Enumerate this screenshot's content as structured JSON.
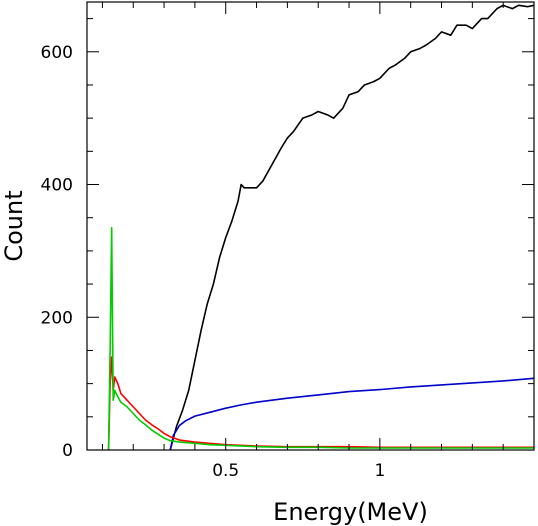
{
  "chart_data": {
    "type": "line",
    "xlabel": "Energy(MeV)",
    "ylabel": "Count",
    "xlim": [
      0.05,
      1.5
    ],
    "ylim": [
      0,
      675
    ],
    "x_ticks": [
      {
        "value": 0.5,
        "label": "0.5"
      },
      {
        "value": 1.0,
        "label": "1"
      }
    ],
    "y_ticks": [
      {
        "value": 0,
        "label": "0"
      },
      {
        "value": 200,
        "label": "200"
      },
      {
        "value": 400,
        "label": "400"
      },
      {
        "value": 600,
        "label": "600"
      }
    ],
    "x_minor_ticks": [
      0.1,
      0.2,
      0.3,
      0.4,
      0.6,
      0.7,
      0.8,
      0.9,
      1.1,
      1.2,
      1.3,
      1.4,
      1.5
    ],
    "y_minor_ticks": [
      50,
      100,
      150,
      250,
      300,
      350,
      450,
      500,
      550,
      650
    ],
    "grid": false,
    "series": [
      {
        "color": "#000000",
        "x": [
          0.32,
          0.34,
          0.36,
          0.38,
          0.4,
          0.42,
          0.44,
          0.46,
          0.48,
          0.5,
          0.52,
          0.54,
          0.55,
          0.56,
          0.58,
          0.6,
          0.62,
          0.65,
          0.68,
          0.7,
          0.72,
          0.75,
          0.78,
          0.8,
          0.83,
          0.85,
          0.88,
          0.9,
          0.93,
          0.95,
          0.98,
          1.0,
          1.03,
          1.05,
          1.08,
          1.1,
          1.13,
          1.15,
          1.18,
          1.2,
          1.23,
          1.25,
          1.28,
          1.3,
          1.33,
          1.35,
          1.38,
          1.4,
          1.43,
          1.45,
          1.48,
          1.5
        ],
        "y": [
          0,
          35,
          60,
          90,
          135,
          180,
          220,
          250,
          290,
          320,
          345,
          375,
          400,
          395,
          395,
          395,
          405,
          430,
          455,
          470,
          480,
          500,
          505,
          510,
          505,
          500,
          515,
          535,
          540,
          550,
          555,
          560,
          575,
          580,
          590,
          600,
          605,
          610,
          620,
          630,
          625,
          640,
          640,
          635,
          650,
          650,
          665,
          670,
          665,
          670,
          668,
          670
        ]
      },
      {
        "color": "#0000cc",
        "x": [
          0.32,
          0.33,
          0.35,
          0.37,
          0.4,
          0.45,
          0.5,
          0.55,
          0.6,
          0.7,
          0.8,
          0.9,
          1.0,
          1.1,
          1.2,
          1.3,
          1.4,
          1.5
        ],
        "y": [
          0,
          22,
          37,
          44,
          51,
          57,
          63,
          68,
          72,
          78,
          83,
          88,
          91,
          95,
          98,
          101,
          104,
          108
        ]
      },
      {
        "color": "#ff0000",
        "x": [
          0.12,
          0.125,
          0.13,
          0.135,
          0.14,
          0.15,
          0.16,
          0.18,
          0.2,
          0.22,
          0.24,
          0.26,
          0.28,
          0.3,
          0.32,
          0.35,
          0.4,
          0.45,
          0.5,
          0.6,
          0.7,
          0.8,
          0.9,
          1.0,
          1.1,
          1.2,
          1.3,
          1.4,
          1.5
        ],
        "y": [
          0,
          100,
          140,
          90,
          110,
          100,
          85,
          75,
          65,
          55,
          45,
          38,
          32,
          25,
          20,
          15,
          12,
          10,
          8,
          6,
          5,
          5,
          5,
          4,
          4,
          4,
          4,
          4,
          4
        ]
      },
      {
        "color": "#00cc00",
        "x": [
          0.12,
          0.125,
          0.13,
          0.135,
          0.14,
          0.15,
          0.16,
          0.18,
          0.2,
          0.22,
          0.24,
          0.26,
          0.28,
          0.3,
          0.32,
          0.35,
          0.4,
          0.45,
          0.5,
          0.6,
          0.7,
          0.8,
          0.9,
          1.0,
          1.1,
          1.2,
          1.3,
          1.4,
          1.5
        ],
        "y": [
          0,
          150,
          335,
          75,
          90,
          80,
          72,
          65,
          55,
          45,
          38,
          30,
          24,
          18,
          14,
          12,
          10,
          8,
          7,
          5,
          4,
          4,
          3,
          3,
          3,
          3,
          3,
          3,
          3
        ]
      }
    ]
  }
}
